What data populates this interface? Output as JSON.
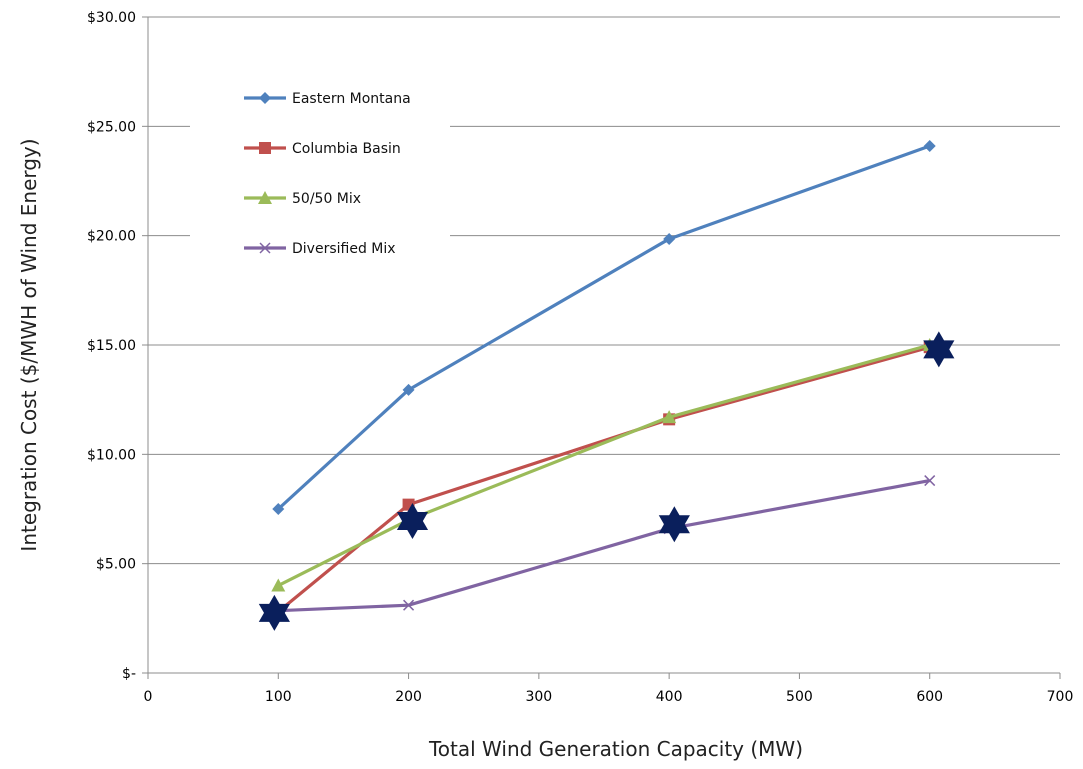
{
  "chart_data": {
    "type": "line",
    "xlabel": "Total Wind Generation Capacity (MW)",
    "ylabel": "Integration Cost ($/MWH of Wind Energy)",
    "xlim": [
      0,
      700
    ],
    "ylim": [
      0,
      30
    ],
    "x_ticks": [
      0,
      100,
      200,
      300,
      400,
      500,
      600,
      700
    ],
    "x_tick_labels": [
      "0",
      "100",
      "200",
      "300",
      "400",
      "500",
      "600",
      "700"
    ],
    "y_ticks": [
      0,
      5,
      10,
      15,
      20,
      25,
      30
    ],
    "y_tick_labels": [
      "$-",
      "$5.00",
      "$10.00",
      "$15.00",
      "$20.00",
      "$25.00",
      "$30.00"
    ],
    "grid": "horizontal",
    "legend_position": "top-left",
    "series": [
      {
        "name": "Eastern Montana",
        "color": "#4F81BD",
        "marker": "diamond",
        "x": [
          100,
          200,
          400,
          600
        ],
        "y": [
          7.5,
          12.95,
          19.85,
          24.1
        ]
      },
      {
        "name": "Columbia Basin",
        "color": "#C0504D",
        "marker": "square",
        "x": [
          100,
          200,
          400,
          600
        ],
        "y": [
          2.8,
          7.7,
          11.6,
          14.9
        ]
      },
      {
        "name": "50/50 Mix",
        "color": "#9BBB59",
        "marker": "triangle",
        "x": [
          100,
          200,
          400,
          600
        ],
        "y": [
          4.0,
          7.0,
          11.7,
          15.0
        ]
      },
      {
        "name": "Diversified Mix",
        "color": "#8064A2",
        "marker": "x",
        "x": [
          100,
          200,
          400,
          600
        ],
        "y": [
          2.85,
          3.1,
          6.6,
          8.8
        ]
      }
    ],
    "highlights": {
      "color": "#0A1F5C",
      "marker": "star",
      "points": [
        {
          "x": 97,
          "y": 2.75
        },
        {
          "x": 203,
          "y": 6.95
        },
        {
          "x": 404,
          "y": 6.8
        },
        {
          "x": 607,
          "y": 14.8
        }
      ]
    }
  }
}
